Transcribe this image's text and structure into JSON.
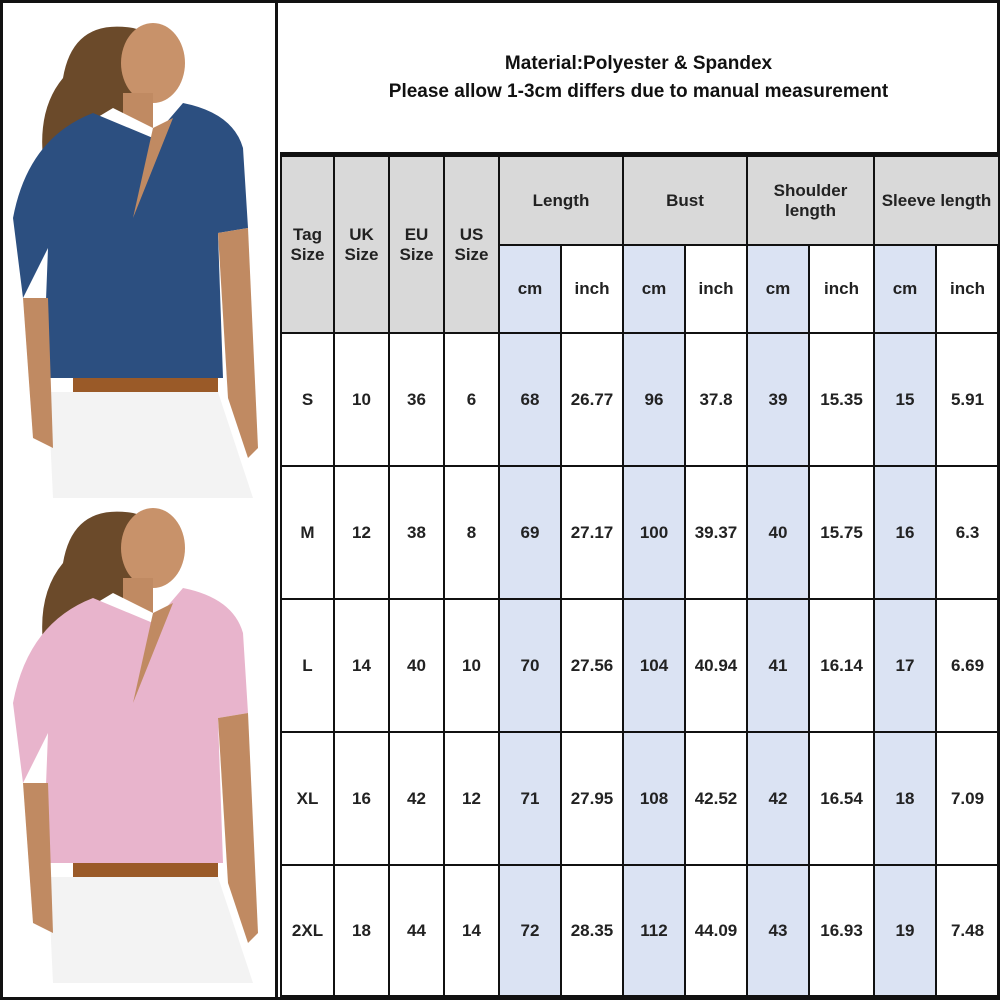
{
  "title": {
    "material": "Material:Polyester & Spandex",
    "note": "Please allow 1-3cm differs due to manual measurement"
  },
  "colors": {
    "header_bg": "#d9d9d9",
    "cm_bg": "#dbe3f3",
    "shirt_1": "#2c4f80",
    "shirt_2": "#e8b4cc"
  },
  "photos": [
    {
      "name": "navy-shirt-model"
    },
    {
      "name": "pink-shirt-model"
    }
  ],
  "headers": {
    "tag": "Tag Size",
    "uk": "UK Size",
    "eu": "EU Size",
    "us": "US Size",
    "length": "Length",
    "bust": "Bust",
    "shoulder": "Shoulder length",
    "sleeve": "Sleeve length",
    "cm": "cm",
    "inch": "inch"
  },
  "rows": [
    [
      "S",
      "10",
      "36",
      "6",
      "68",
      "26.77",
      "96",
      "37.8",
      "39",
      "15.35",
      "15",
      "5.91"
    ],
    [
      "M",
      "12",
      "38",
      "8",
      "69",
      "27.17",
      "100",
      "39.37",
      "40",
      "15.75",
      "16",
      "6.3"
    ],
    [
      "L",
      "14",
      "40",
      "10",
      "70",
      "27.56",
      "104",
      "40.94",
      "41",
      "16.14",
      "17",
      "6.69"
    ],
    [
      "XL",
      "16",
      "42",
      "12",
      "71",
      "27.95",
      "108",
      "42.52",
      "42",
      "16.54",
      "18",
      "7.09"
    ],
    [
      "2XL",
      "18",
      "44",
      "14",
      "72",
      "28.35",
      "112",
      "44.09",
      "43",
      "16.93",
      "19",
      "7.48"
    ]
  ]
}
